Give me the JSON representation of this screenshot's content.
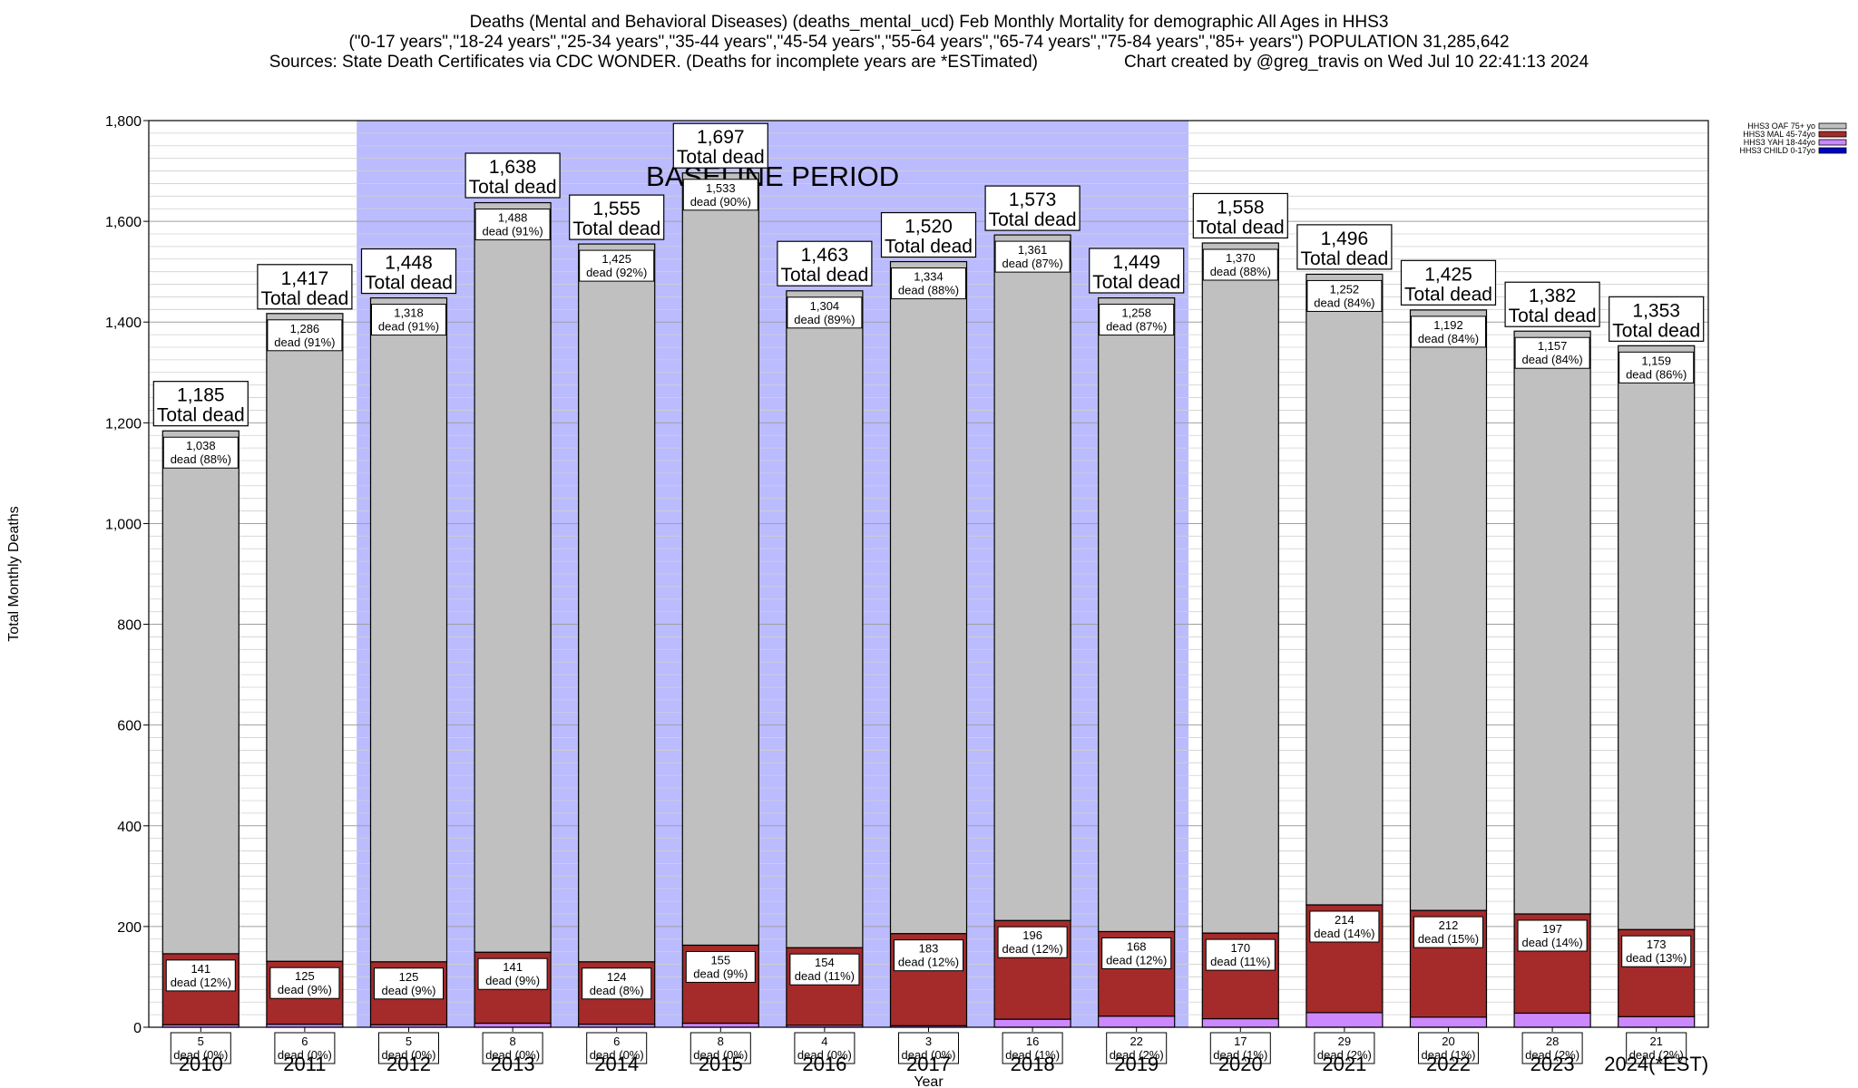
{
  "header": {
    "title": "Deaths (Mental and Behavioral Diseases) (deaths_mental_ucd) Feb Monthly Mortality for demographic All Ages in HHS3",
    "subtitle": "(\"0-17 years\",\"18-24 years\",\"25-34 years\",\"35-44 years\",\"45-54 years\",\"55-64 years\",\"65-74 years\",\"75-84 years\",\"85+ years\") POPULATION 31,285,642",
    "sources": "Sources: State Death Certificates via CDC WONDER. (Deaths for incomplete years are *ESTimated)",
    "credit": "Chart created by @greg_travis on Wed Jul 10 22:41:13 2024"
  },
  "chart_data": {
    "type": "bar",
    "stacked": true,
    "categories": [
      "2010",
      "2011",
      "2012",
      "2013",
      "2014",
      "2015",
      "2016",
      "2017",
      "2018",
      "2019",
      "2020",
      "2021",
      "2022",
      "2023",
      "2024(*EST)"
    ],
    "xlabel": "Year",
    "ylabel": "Total Monthly Deaths",
    "ylim": [
      0,
      1800
    ],
    "yticks": [
      0,
      200,
      400,
      600,
      800,
      1000,
      1200,
      1400,
      1600,
      1800
    ],
    "ytick_labels": [
      "0",
      "200",
      "400",
      "600",
      "800",
      "1,000",
      "1,200",
      "1,400",
      "1,600",
      "1,800"
    ],
    "grid": true,
    "legend_position": "top-right",
    "baseline_period": {
      "label": "BASELINE PERIOD",
      "from": "2012",
      "to": "2019",
      "color": "#bbbbff"
    },
    "total_label": "Total dead",
    "dead_word": "dead",
    "totals": [
      1185,
      1417,
      1448,
      1638,
      1555,
      1697,
      1463,
      1520,
      1573,
      1449,
      1558,
      1496,
      1425,
      1382,
      1353
    ],
    "total_labels": [
      "1,185",
      "1,417",
      "1,448",
      "1,638",
      "1,555",
      "1,697",
      "1,463",
      "1,520",
      "1,573",
      "1,449",
      "1,558",
      "1,496",
      "1,425",
      "1,382",
      "1,353"
    ],
    "series": [
      {
        "name": "HHS3 CHILD 0-17yo",
        "color": "#0000cc",
        "values": [
          0,
          0,
          0,
          0,
          0,
          0,
          0,
          0,
          0,
          0,
          0,
          0,
          0,
          0,
          0
        ]
      },
      {
        "name": "HHS3 YAH 18-44yo",
        "color": "#cc88ff",
        "values": [
          5,
          6,
          5,
          8,
          6,
          8,
          4,
          3,
          16,
          22,
          17,
          29,
          20,
          28,
          21
        ],
        "labels": [
          "5\ndead (0%)",
          "6\ndead (0%)",
          "5\ndead (0%)",
          "8\ndead (0%)",
          "6\ndead (0%)",
          "8\ndead (0%)",
          "4\ndead (0%)",
          "3\ndead (0%)",
          "16\ndead (1%)",
          "22\ndead (2%)",
          "17\ndead (1%)",
          "29\ndead (2%)",
          "20\ndead (1%)",
          "28\ndead (2%)",
          "21\ndead (2%)"
        ]
      },
      {
        "name": "HHS3 MAL 45-74yo",
        "color": "#a52a2a",
        "values": [
          141,
          125,
          125,
          141,
          124,
          155,
          154,
          183,
          196,
          168,
          170,
          214,
          212,
          197,
          173
        ],
        "labels": [
          "141\ndead (12%)",
          "125\ndead (9%)",
          "125\ndead (9%)",
          "141\ndead (9%)",
          "124\ndead (8%)",
          "155\ndead (9%)",
          "154\ndead (11%)",
          "183\ndead (12%)",
          "196\ndead (12%)",
          "168\ndead (12%)",
          "170\ndead (11%)",
          "214\ndead (14%)",
          "212\ndead (15%)",
          "197\ndead (14%)",
          "173\ndead (13%)"
        ]
      },
      {
        "name": "HHS3 OAF 75+ yo",
        "color": "#c0c0c0",
        "values": [
          1038,
          1286,
          1318,
          1488,
          1425,
          1533,
          1304,
          1334,
          1361,
          1258,
          1370,
          1252,
          1192,
          1157,
          1159
        ],
        "labels": [
          "1,038\ndead (88%)",
          "1,286\ndead (91%)",
          "1,318\ndead (91%)",
          "1,488\ndead (91%)",
          "1,425\ndead (92%)",
          "1,533\ndead (90%)",
          "1,304\ndead (89%)",
          "1,334\ndead (88%)",
          "1,361\ndead (87%)",
          "1,258\ndead (87%)",
          "1,370\ndead (88%)",
          "1,252\ndead (84%)",
          "1,192\ndead (84%)",
          "1,157\ndead (84%)",
          "1,159\ndead (86%)"
        ]
      }
    ]
  }
}
